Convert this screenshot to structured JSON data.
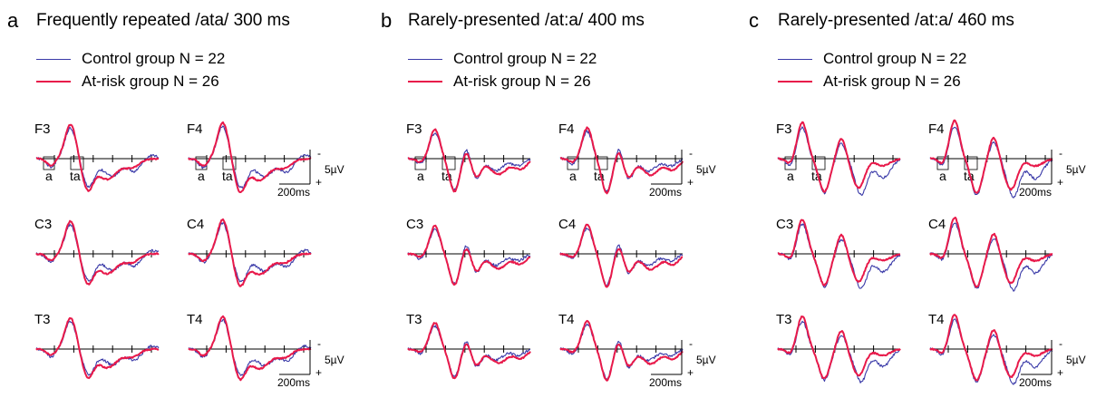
{
  "colors": {
    "control": "#3a3aa8",
    "at_risk": "#e8194a"
  },
  "legend": {
    "control": "Control group N = 22",
    "at_risk": "At-risk group N = 26"
  },
  "scale": {
    "plus": "+",
    "minus": "-",
    "voltage": "5µV",
    "time": "200ms"
  },
  "chart_data": [
    {
      "type": "line",
      "panel": "a",
      "title": "Frequently repeated /ata/ 300 ms",
      "stimulus_labels": [
        "a",
        "ta"
      ],
      "electrodes": [
        "F3",
        "F4",
        "C3",
        "C4",
        "T3",
        "T4"
      ],
      "series": [
        {
          "name": "Control group N = 22"
        },
        {
          "name": "At-risk group N = 26"
        }
      ],
      "y_polarity": "negative up",
      "features": {
        "deflections": [
          "negative",
          "positive",
          "negative"
        ],
        "late_positive": true
      }
    },
    {
      "type": "line",
      "panel": "b",
      "title": "Rarely-presented /at:a/ 400 ms",
      "stimulus_labels": [
        "a",
        "ta"
      ],
      "electrodes": [
        "F3",
        "F4",
        "C3",
        "C4",
        "T3",
        "T4"
      ],
      "series": [
        {
          "name": "Control group N = 22"
        },
        {
          "name": "At-risk group N = 26"
        }
      ],
      "y_polarity": "negative up"
    },
    {
      "type": "line",
      "panel": "c",
      "title": "Rarely-presented /at:a/ 460 ms",
      "stimulus_labels": [
        "a",
        "ta"
      ],
      "electrodes": [
        "F3",
        "F4",
        "C3",
        "C4",
        "T3",
        "T4"
      ],
      "series": [
        {
          "name": "Control group N = 22"
        },
        {
          "name": "At-risk group N = 26"
        }
      ],
      "y_polarity": "negative up"
    }
  ]
}
